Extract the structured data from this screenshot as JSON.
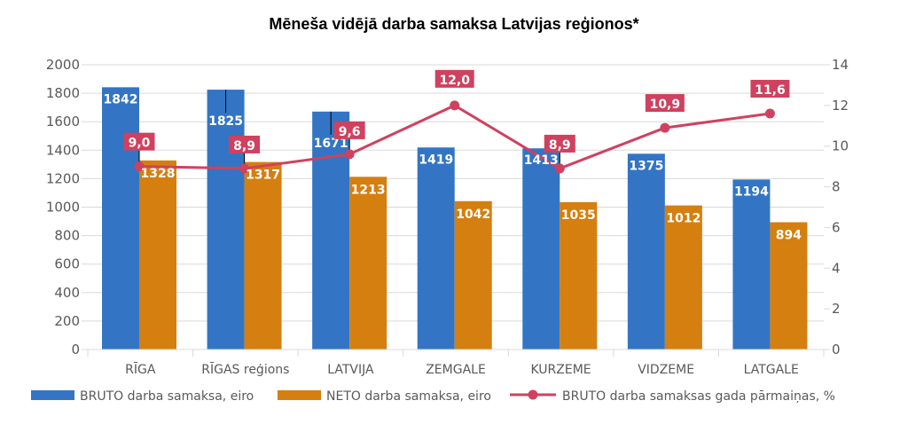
{
  "chart_data": {
    "type": "bar",
    "title": "Mēneša vidējā darba samaksa Latvijas reģionos*",
    "categories": [
      "RĪGA",
      "RĪGAS reģions",
      "LATVIJA",
      "ZEMGALE",
      "KURZEME",
      "VIDZEME",
      "LATGALE"
    ],
    "series": [
      {
        "name": "BRUTO darba samaksa, eiro",
        "kind": "bar",
        "axis": "left",
        "color": "#3375C4",
        "values": [
          1842,
          1825,
          1671,
          1419,
          1413,
          1375,
          1194
        ],
        "labels": [
          "1842",
          "1825",
          "1671",
          "1419",
          "1413",
          "1375",
          "1194"
        ]
      },
      {
        "name": "NETO darba samaksa, eiro",
        "kind": "bar",
        "axis": "left",
        "color": "#D47F0F",
        "values": [
          1328,
          1317,
          1213,
          1042,
          1035,
          1012,
          894
        ],
        "labels": [
          "1328",
          "1317",
          "1213",
          "1042",
          "1035",
          "1012",
          "894"
        ]
      },
      {
        "name": "BRUTO darba samaksas gada pārmaiņas, %",
        "kind": "line",
        "axis": "right",
        "color": "#D0415F",
        "values": [
          9.0,
          8.9,
          9.6,
          12.0,
          8.9,
          10.9,
          11.6
        ],
        "labels": [
          "9,0",
          "8,9",
          "9,6",
          "12,0",
          "8,9",
          "10,9",
          "11,6"
        ]
      }
    ],
    "y_left": {
      "min": 0,
      "max": 2000,
      "step": 200,
      "ticks": [
        "0",
        "200",
        "400",
        "600",
        "800",
        "1000",
        "1200",
        "1400",
        "1600",
        "1800",
        "2000"
      ]
    },
    "y_right": {
      "min": 0,
      "max": 14,
      "step": 2,
      "ticks": [
        "0",
        "2",
        "4",
        "6",
        "8",
        "10",
        "12",
        "14"
      ]
    },
    "xlabel": "",
    "ylabel": "",
    "grid": true,
    "legend": "bottom"
  }
}
